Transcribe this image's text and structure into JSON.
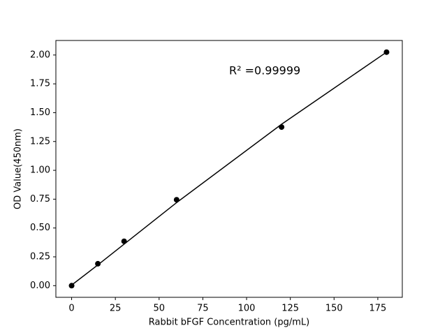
{
  "chart_data": {
    "type": "scatter",
    "xlabel": "Rabbit bFGF Concentration (pg/mL)",
    "ylabel": "OD Value(450nm)",
    "annotation": "R² =0.99999",
    "series": [
      {
        "mode": "markers",
        "color": "#000000",
        "x": [
          0,
          15,
          30,
          60,
          120,
          180
        ],
        "values": [
          0.0,
          0.19,
          0.385,
          0.745,
          1.375,
          2.025
        ]
      },
      {
        "mode": "line",
        "color": "#000000",
        "x": [
          0,
          15,
          30,
          60,
          120,
          180
        ],
        "values": [
          0.005,
          0.18,
          0.36,
          0.72,
          1.4,
          2.025
        ]
      }
    ],
    "xlim": [
      -9,
      189
    ],
    "ylim": [
      -0.101,
      2.126
    ],
    "xticks": [
      0,
      25,
      50,
      75,
      100,
      125,
      150,
      175
    ],
    "yticks": [
      {
        "value": 0,
        "label": "0.00"
      },
      {
        "value": 0.25,
        "label": "0.25"
      },
      {
        "value": 0.5,
        "label": "0.50"
      },
      {
        "value": 0.75,
        "label": "0.75"
      },
      {
        "value": 1,
        "label": "1.00"
      },
      {
        "value": 1.25,
        "label": "1.25"
      },
      {
        "value": 1.5,
        "label": "1.50"
      },
      {
        "value": 1.75,
        "label": "1.75"
      },
      {
        "value": 2,
        "label": "2.00"
      }
    ]
  }
}
